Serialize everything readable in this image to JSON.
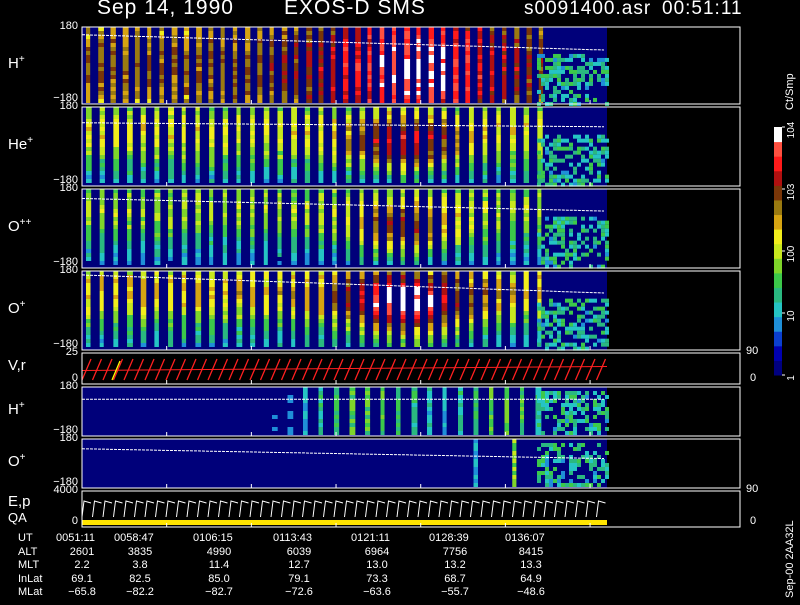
{
  "header": {
    "date": "Sep 14, 1990",
    "instrument": "EXOS-D SMS",
    "file": "s0091400.asr",
    "time": "00:51:11"
  },
  "side_note": "Sep-00 2AA32L",
  "colorbar": {
    "unit": "Ct/Smp",
    "ticks": [
      {
        "label": "1",
        "value": 1
      },
      {
        "label": "10",
        "value": 10
      },
      {
        "label": "100",
        "value": 100
      },
      {
        "label": "10^3",
        "value": 1000
      },
      {
        "label": "10^4",
        "value": 10000
      }
    ],
    "colors": [
      "#00007f",
      "#0000b0",
      "#0b3fcf",
      "#1f8fd8",
      "#25c4c4",
      "#2ab880",
      "#3cc84a",
      "#7fd52a",
      "#c8e81e",
      "#f2ee1c",
      "#d6a412",
      "#9a7a10",
      "#7a3608",
      "#b01010",
      "#ff1a1a",
      "#ff5040",
      "#ffffff"
    ]
  },
  "panels": [
    {
      "base": "H",
      "sup": "+",
      "ytop": "180",
      "ybot": "−180"
    },
    {
      "base": "He",
      "sup": "+",
      "ytop": "180",
      "ybot": "−180"
    },
    {
      "base": "O",
      "sup": "++",
      "ytop": "180",
      "ybot": "−180"
    },
    {
      "base": "O",
      "sup": "+",
      "ytop": "180",
      "ybot": "−180"
    },
    {
      "base": "V,r",
      "sup": "",
      "ytop": "25",
      "ybot": "0",
      "rtop": "90",
      "rbot": "0"
    },
    {
      "base": "H",
      "sup": "+",
      "ytop": "180",
      "ybot": "−180"
    },
    {
      "base": "O",
      "sup": "+",
      "ytop": "180",
      "ybot": "−180"
    },
    {
      "base": "E,p",
      "sub": "QA",
      "ytop": "4000",
      "ybot": "0",
      "rtop": "90",
      "rbot": "0"
    }
  ],
  "chart_data": {
    "type": "heatmap",
    "title": "Sep 14, 1990    EXOS-D SMS",
    "y_range_pitch_angle": [
      -180,
      180
    ],
    "energy_range": [
      0,
      4000
    ],
    "colorbar_range": [
      1,
      10000
    ],
    "colorbar_unit": "Ct/Smp",
    "x_ticks": [
      "0051:11",
      "0058:47",
      "0106:15",
      "0113:43",
      "0121:11",
      "0128:39",
      "0136:07"
    ]
  },
  "footer": {
    "rows": [
      {
        "label": "UT",
        "values": [
          "0051:11",
          "0058:47",
          "0106:15",
          "0113:43",
          "0121:11",
          "0128:39",
          "0136:07"
        ]
      },
      {
        "label": "ALT",
        "values": [
          "2601",
          "3835",
          "4990",
          "6039",
          "6964",
          "7756",
          "8415"
        ]
      },
      {
        "label": "MLT",
        "values": [
          "2.2",
          "3.8",
          "11.4",
          "12.7",
          "13.0",
          "13.2",
          "13.3"
        ]
      },
      {
        "label": "InLat",
        "values": [
          "69.1",
          "82.5",
          "85.0",
          "79.1",
          "73.3",
          "68.7",
          "64.9"
        ]
      },
      {
        "label": "MLat",
        "values": [
          "−65.8",
          "−82.2",
          "−82.7",
          "−72.6",
          "−63.6",
          "−55.7",
          "−48.6"
        ]
      }
    ]
  }
}
